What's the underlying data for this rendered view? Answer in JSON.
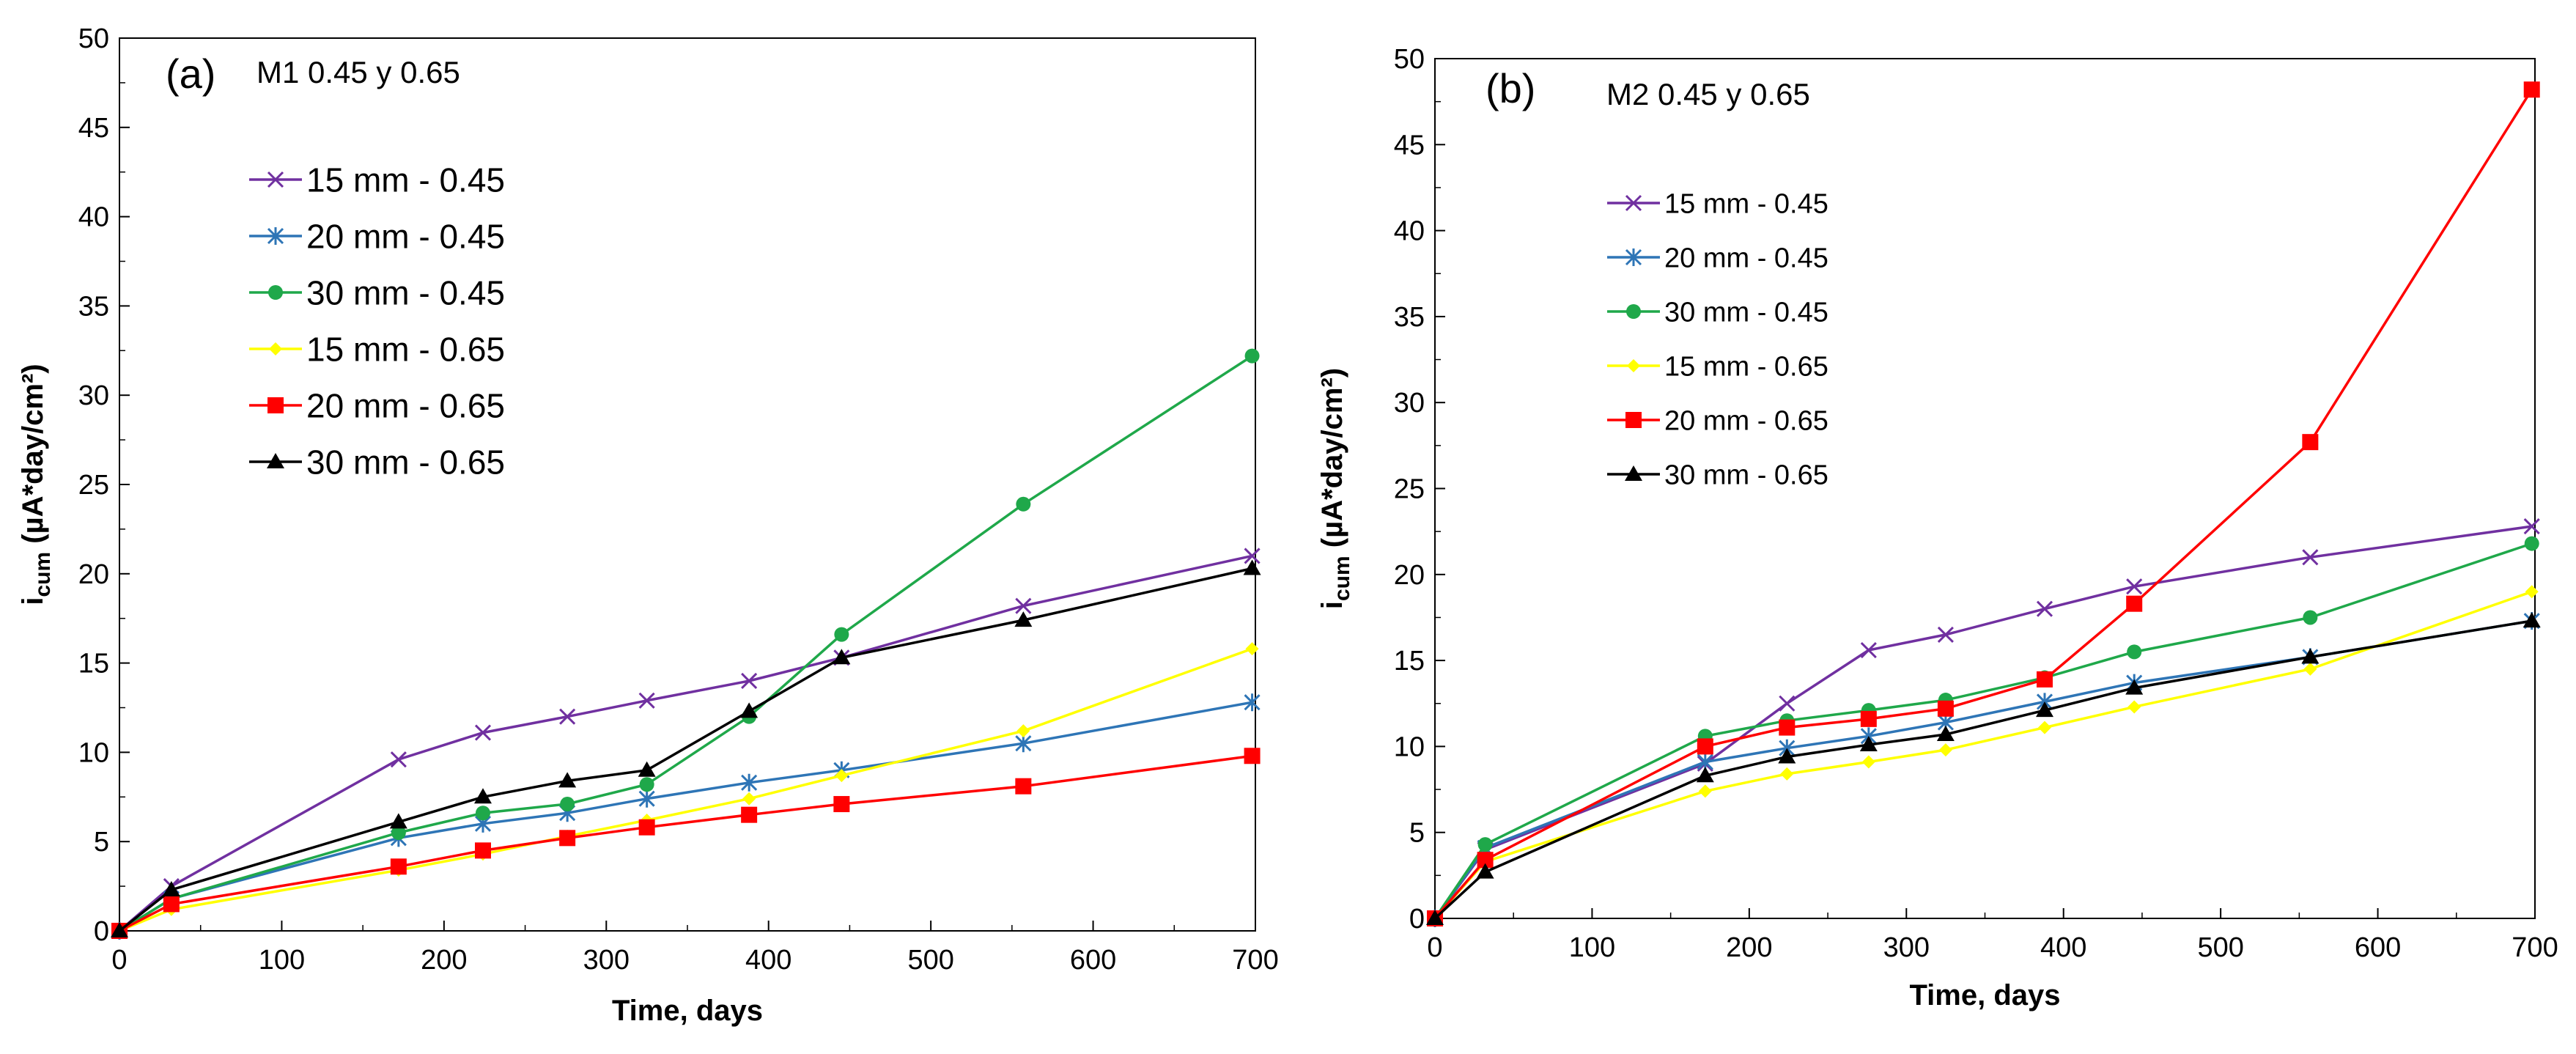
{
  "chart_data": [
    {
      "type": "line",
      "panel_label": "(a)",
      "title": "M1 0.45 y 0.65",
      "xlabel": "Time, days",
      "ylabel_main": "i",
      "ylabel_sub": "cum",
      "ylabel_units": " (µA*day/cm²)",
      "xlim": [
        0,
        700
      ],
      "ylim": [
        0,
        50
      ],
      "x_ticks": [
        0,
        100,
        200,
        300,
        400,
        500,
        600,
        700
      ],
      "y_ticks": [
        0,
        5,
        10,
        15,
        20,
        25,
        30,
        35,
        40,
        45,
        50
      ],
      "grid": false,
      "legend_position": "top-left",
      "series": [
        {
          "name": "15 mm - 0.45",
          "color": "#7030A0",
          "marker": "x",
          "x": [
            0,
            32,
            172,
            224,
            276,
            325,
            388,
            445,
            557,
            698
          ],
          "y": [
            0,
            2.5,
            9.6,
            11.1,
            12.0,
            12.9,
            14.0,
            15.3,
            18.2,
            21.0
          ]
        },
        {
          "name": "20 mm - 0.45",
          "color": "#2E75B6",
          "marker": "asterisk",
          "x": [
            0,
            32,
            172,
            224,
            276,
            325,
            388,
            445,
            557,
            698
          ],
          "y": [
            0,
            1.8,
            5.2,
            6.0,
            6.6,
            7.4,
            8.3,
            9.0,
            10.5,
            12.8
          ]
        },
        {
          "name": "30 mm - 0.45",
          "color": "#1FA84A",
          "marker": "circle",
          "x": [
            0,
            32,
            172,
            224,
            276,
            325,
            388,
            445,
            557,
            698
          ],
          "y": [
            0,
            1.8,
            5.5,
            6.6,
            7.1,
            8.2,
            12.0,
            16.6,
            23.9,
            32.2
          ]
        },
        {
          "name": "15 mm - 0.65",
          "color": "#FFFF00",
          "marker": "diamond",
          "x": [
            0,
            32,
            172,
            224,
            276,
            325,
            388,
            445,
            557,
            698
          ],
          "y": [
            0,
            1.2,
            3.4,
            4.3,
            5.3,
            6.2,
            7.4,
            8.7,
            11.2,
            15.8
          ]
        },
        {
          "name": "20 mm - 0.65",
          "color": "#FF0000",
          "marker": "square",
          "x": [
            0,
            32,
            172,
            224,
            276,
            325,
            388,
            445,
            557,
            698
          ],
          "y": [
            0,
            1.5,
            3.6,
            4.5,
            5.2,
            5.8,
            6.5,
            7.1,
            8.1,
            9.8
          ]
        },
        {
          "name": "30 mm - 0.65",
          "color": "#000000",
          "marker": "triangle",
          "x": [
            0,
            32,
            172,
            224,
            276,
            325,
            388,
            445,
            557,
            698
          ],
          "y": [
            0,
            2.3,
            6.1,
            7.5,
            8.4,
            9.0,
            12.3,
            15.3,
            17.4,
            20.3
          ]
        }
      ]
    },
    {
      "type": "line",
      "panel_label": "(b)",
      "title": "M2 0.45 y 0.65",
      "xlabel": "Time, days",
      "ylabel_main": "i",
      "ylabel_sub": "cum",
      "ylabel_units": " (µA*day/cm²)",
      "xlim": [
        0,
        700
      ],
      "ylim": [
        0,
        50
      ],
      "x_ticks": [
        0,
        100,
        200,
        300,
        400,
        500,
        600,
        700
      ],
      "y_ticks": [
        0,
        5,
        10,
        15,
        20,
        25,
        30,
        35,
        40,
        45,
        50
      ],
      "grid": false,
      "legend_position": "top-left",
      "series": [
        {
          "name": "15 mm - 0.45",
          "color": "#7030A0",
          "marker": "x",
          "x": [
            0,
            32,
            172,
            224,
            276,
            325,
            388,
            445,
            557,
            698
          ],
          "y": [
            0,
            4.0,
            9.0,
            12.5,
            15.6,
            16.5,
            18.0,
            19.3,
            21.0,
            22.8
          ]
        },
        {
          "name": "20 mm - 0.45",
          "color": "#2E75B6",
          "marker": "asterisk",
          "x": [
            0,
            32,
            172,
            224,
            276,
            325,
            388,
            445,
            557,
            698
          ],
          "y": [
            0,
            4.1,
            9.1,
            9.9,
            10.6,
            11.4,
            12.6,
            13.7,
            15.2,
            17.3
          ]
        },
        {
          "name": "30 mm - 0.45",
          "color": "#1FA84A",
          "marker": "circle",
          "x": [
            0,
            32,
            172,
            224,
            276,
            325,
            388,
            445,
            557,
            698
          ],
          "y": [
            0,
            4.3,
            10.6,
            11.5,
            12.1,
            12.7,
            14.0,
            15.5,
            17.5,
            21.8
          ]
        },
        {
          "name": "15 mm - 0.65",
          "color": "#FFFF00",
          "marker": "diamond",
          "x": [
            0,
            32,
            172,
            224,
            276,
            325,
            388,
            445,
            557,
            698
          ],
          "y": [
            0,
            3.3,
            7.4,
            8.4,
            9.1,
            9.8,
            11.1,
            12.3,
            14.5,
            19.0
          ]
        },
        {
          "name": "20 mm - 0.65",
          "color": "#FF0000",
          "marker": "square",
          "x": [
            0,
            32,
            172,
            224,
            276,
            325,
            388,
            445,
            557,
            698
          ],
          "y": [
            0,
            3.4,
            10.0,
            11.1,
            11.6,
            12.2,
            13.9,
            18.3,
            27.7,
            48.2
          ]
        },
        {
          "name": "30 mm - 0.65",
          "color": "#000000",
          "marker": "triangle",
          "x": [
            0,
            32,
            172,
            224,
            276,
            325,
            388,
            445,
            557,
            698
          ],
          "y": [
            0,
            2.7,
            8.3,
            9.4,
            10.1,
            10.7,
            12.1,
            13.4,
            15.2,
            17.3
          ]
        }
      ]
    }
  ]
}
